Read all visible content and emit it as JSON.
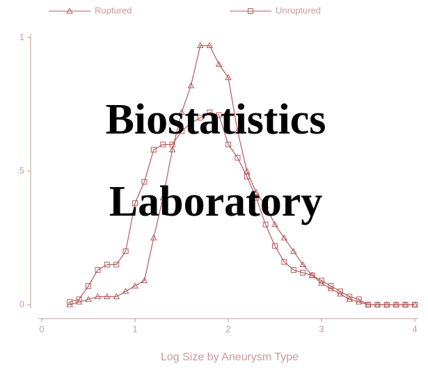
{
  "chart_data": {
    "type": "line",
    "x_label": "Log Size by Aneurysm Type",
    "annotations": [
      "Biostatistics",
      "Laboratory"
    ],
    "x": [
      0.3,
      0.4,
      0.5,
      0.6,
      0.7,
      0.8,
      0.9,
      1.0,
      1.1,
      1.2,
      1.3,
      1.4,
      1.5,
      1.6,
      1.7,
      1.8,
      1.9,
      2.0,
      2.1,
      2.2,
      2.3,
      2.4,
      2.5,
      2.6,
      2.7,
      2.8,
      2.9,
      3.0,
      3.1,
      3.2,
      3.3,
      3.4,
      3.5,
      3.6,
      3.7,
      3.8,
      3.9,
      4.0
    ],
    "series": [
      {
        "name": "Ruptured",
        "color": "#b45a5a",
        "marker": "triangle",
        "values": [
          0,
          0.01,
          0.02,
          0.03,
          0.03,
          0.03,
          0.05,
          0.07,
          0.09,
          0.25,
          0.4,
          0.58,
          0.72,
          0.82,
          0.97,
          0.97,
          0.9,
          0.85,
          0.65,
          0.5,
          0.42,
          0.37,
          0.3,
          0.25,
          0.2,
          0.15,
          0.11,
          0.08,
          0.06,
          0.04,
          0.02,
          0.01,
          0,
          0,
          0,
          0,
          0,
          0
        ]
      },
      {
        "name": "Unruptured",
        "color": "#b45a5a",
        "marker": "square",
        "values": [
          0.01,
          0.02,
          0.07,
          0.13,
          0.15,
          0.15,
          0.2,
          0.38,
          0.46,
          0.58,
          0.6,
          0.6,
          0.65,
          0.68,
          0.7,
          0.72,
          0.71,
          0.6,
          0.55,
          0.48,
          0.4,
          0.3,
          0.22,
          0.16,
          0.13,
          0.12,
          0.11,
          0.09,
          0.07,
          0.05,
          0.03,
          0.02,
          0,
          0,
          0,
          0,
          0,
          0
        ]
      }
    ],
    "xlim": [
      0,
      4
    ],
    "xticks": [
      0,
      1,
      2,
      3,
      4
    ],
    "ylim": [
      0,
      1
    ],
    "yticks": [
      0,
      {
        "value": 0.5,
        "label": ".5"
      },
      1
    ],
    "legend": "top"
  }
}
